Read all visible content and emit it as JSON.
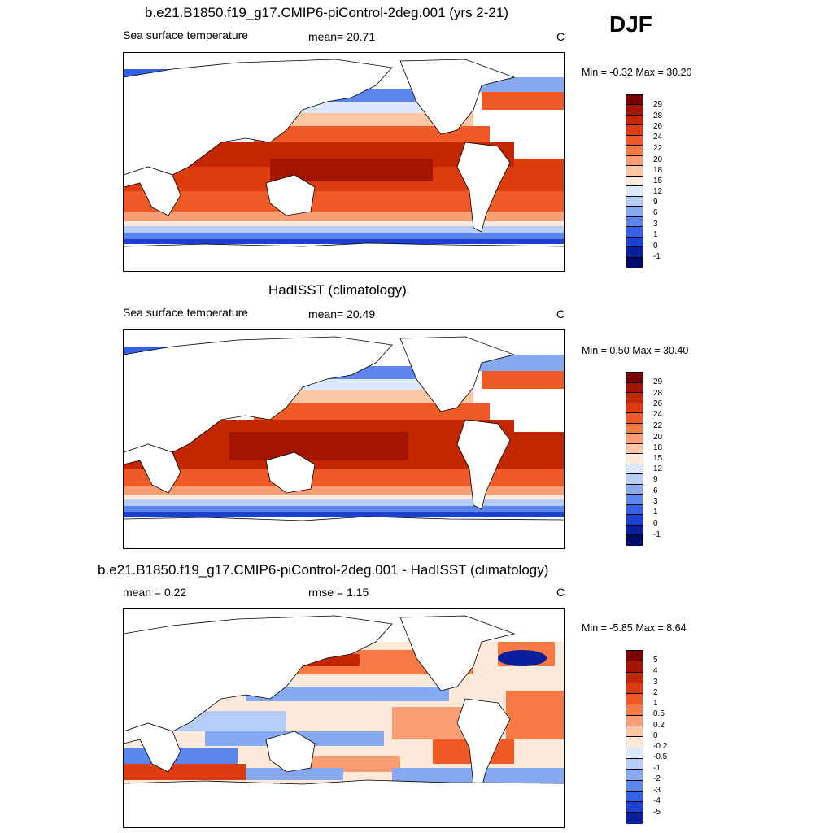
{
  "season": "DJF",
  "panels": [
    {
      "title": "b.e21.B1850.f19_g17.CMIP6-piControl-2deg.001 (yrs 2-21)",
      "left_label": "Sea surface temperature",
      "center_label": "mean=  20.71",
      "units": "C",
      "minmax": "Min =  -0.32 Max =  30.20",
      "colorbar_ticks": [
        "29",
        "28",
        "26",
        "24",
        "22",
        "20",
        "18",
        "15",
        "12",
        "9",
        "6",
        "3",
        "1",
        "0",
        "-1"
      ]
    },
    {
      "title": "HadISST (climatology)",
      "left_label": "Sea surface temperature",
      "center_label": "mean=  20.49",
      "units": "C",
      "minmax": "Min =   0.50 Max =  30.40",
      "colorbar_ticks": [
        "29",
        "28",
        "26",
        "24",
        "22",
        "20",
        "18",
        "15",
        "12",
        "9",
        "6",
        "3",
        "1",
        "0",
        "-1"
      ]
    },
    {
      "title": "b.e21.B1850.f19_g17.CMIP6-piControl-2deg.001 - HadISST (climatology)",
      "left_label": "mean =   0.22",
      "center_label": "rmse =   1.15",
      "units": "C",
      "minmax": "Min =  -5.85 Max =   8.64",
      "colorbar_ticks": [
        "5",
        "4",
        "3",
        "2",
        "1",
        "0.5",
        "0.2",
        "0",
        "-0.2",
        "-0.5",
        "-1",
        "-2",
        "-3",
        "-4",
        "-5"
      ]
    }
  ],
  "colors": {
    "sst_scale": [
      "#7a0000",
      "#a31500",
      "#c42600",
      "#dd3d0e",
      "#f05a26",
      "#f77a45",
      "#fb9e74",
      "#fdc7a6",
      "#fdeadb",
      "#dce8fb",
      "#b5cdf7",
      "#86a9f2",
      "#5c85ed",
      "#3462e6",
      "#1c3fd4",
      "#0a1f9e",
      "#000a6b"
    ],
    "diff_scale": [
      "#7a0000",
      "#a31500",
      "#c42600",
      "#dd3d0e",
      "#f05a26",
      "#f77a45",
      "#fb9e74",
      "#fdc7a6",
      "#fdeadb",
      "#dce8fb",
      "#b5cdf7",
      "#86a9f2",
      "#5c85ed",
      "#3462e6",
      "#1c3fd4",
      "#0a1f9e"
    ]
  }
}
